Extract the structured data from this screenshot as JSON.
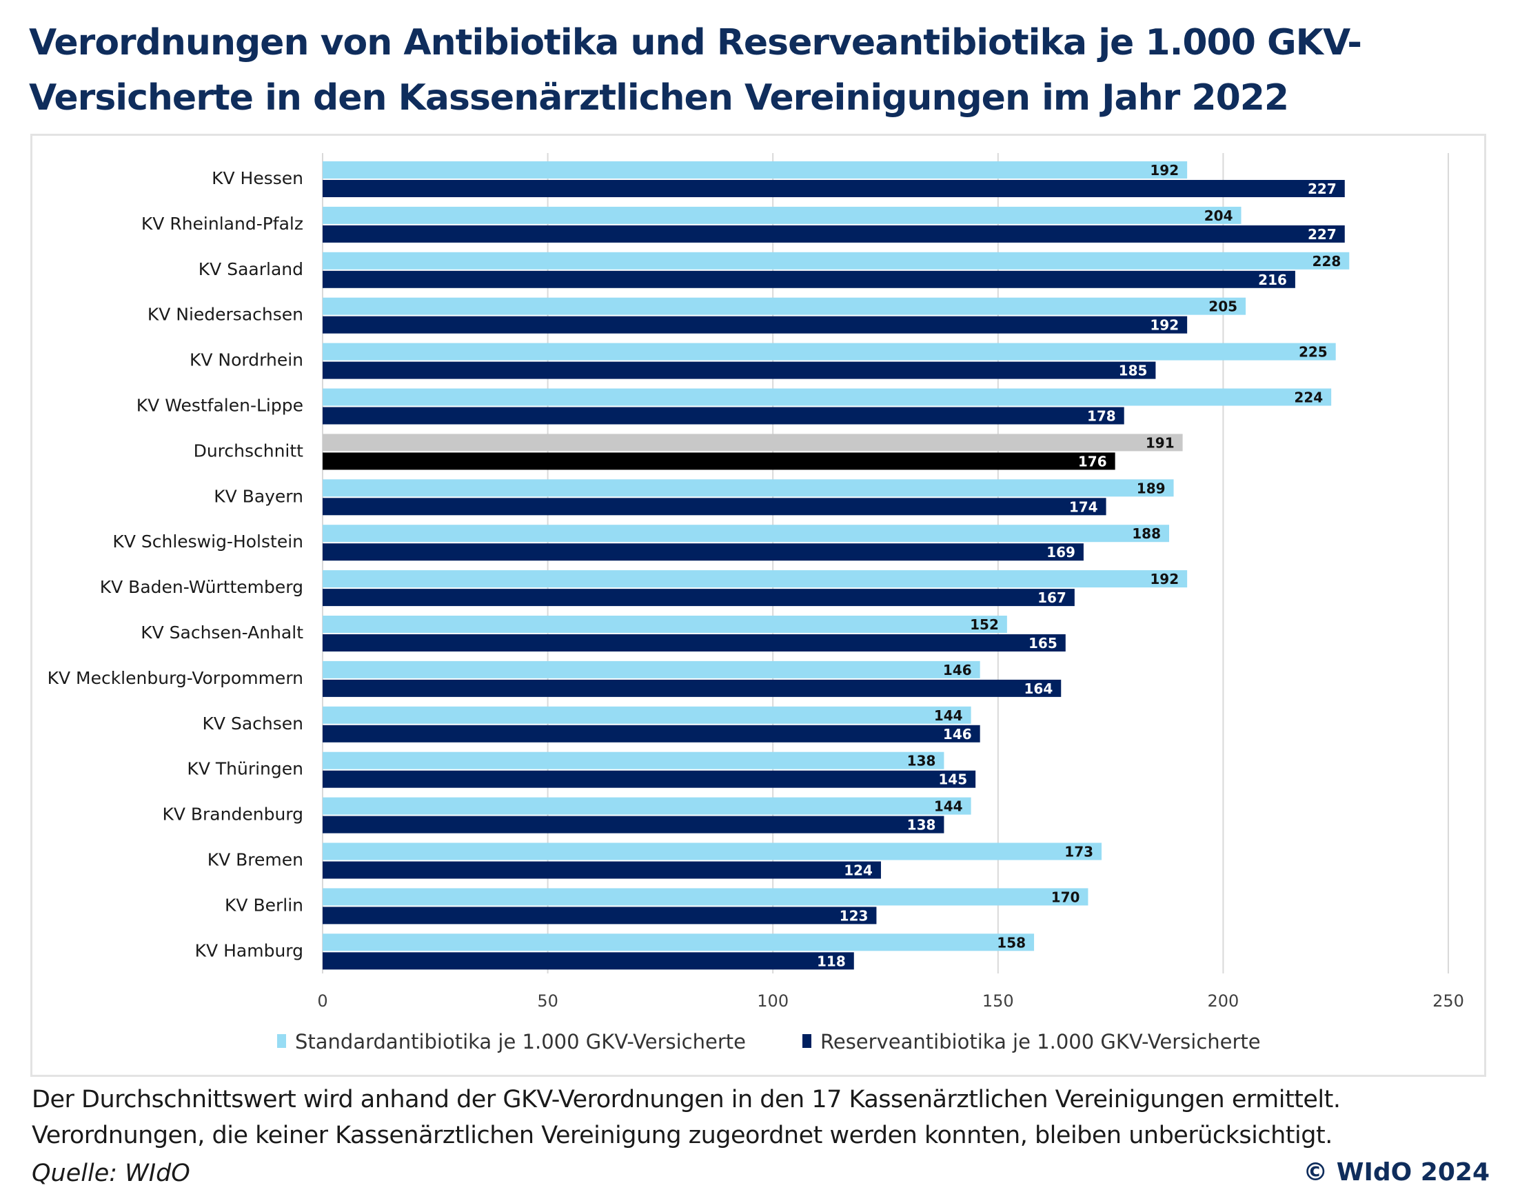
{
  "title": {
    "line1": "Verordnungen von Antibiotika und Reserveantibiotika je 1.000 GKV-",
    "line2": "Versicherte in den Kassenärztlichen Vereinigungen im Jahr 2022"
  },
  "footnote": {
    "line1": "Der Durchschnittswert wird anhand der GKV-Verordnungen in den 17 Kassenärztlichen Vereinigungen ermittelt.",
    "line2": "Verordnungen, die keiner Kassenärztlichen Vereinigung zugeordnet werden konnten, bleiben unberücksichtigt."
  },
  "source": "Quelle: WIdO",
  "copyright": "© WIdO 2024",
  "colors": {
    "standard": "#97dcf4",
    "reserve": "#00205f",
    "average_standard": "#c8c8c8",
    "average_reserve": "#000000",
    "title": "#0f2d5c",
    "gridline": "#d9d9d9"
  },
  "chart_data": {
    "type": "bar",
    "orientation": "horizontal",
    "title": "Verordnungen von Antibiotika und Reserveantibiotika je 1.000 GKV-Versicherte in den Kassenärztlichen Vereinigungen im Jahr 2022",
    "xlabel": "",
    "ylabel": "",
    "xlim": [
      0,
      250
    ],
    "xticks": [
      0,
      50,
      100,
      150,
      200,
      250
    ],
    "grid": true,
    "legend_position": "bottom",
    "categories": [
      "KV Hessen",
      "KV Rheinland-Pfalz",
      "KV Saarland",
      "KV Niedersachsen",
      "KV Nordrhein",
      "KV Westfalen-Lippe",
      "Durchschnitt",
      "KV Bayern",
      "KV Schleswig-Holstein",
      "KV Baden-Württemberg",
      "KV Sachsen-Anhalt",
      "KV Mecklenburg-Vorpommern",
      "KV Sachsen",
      "KV Thüringen",
      "KV Brandenburg",
      "KV Bremen",
      "KV Berlin",
      "KV Hamburg"
    ],
    "highlight_category": "Durchschnitt",
    "series": [
      {
        "name": "Standardantibiotika je 1.000 GKV-Versicherte",
        "values": [
          192,
          204,
          228,
          205,
          225,
          224,
          191,
          189,
          188,
          192,
          152,
          146,
          144,
          138,
          144,
          173,
          170,
          158
        ]
      },
      {
        "name": "Reserveantibiotika je 1.000 GKV-Versicherte",
        "values": [
          227,
          227,
          216,
          192,
          185,
          178,
          176,
          174,
          169,
          167,
          165,
          164,
          146,
          145,
          138,
          124,
          123,
          118
        ]
      }
    ]
  }
}
